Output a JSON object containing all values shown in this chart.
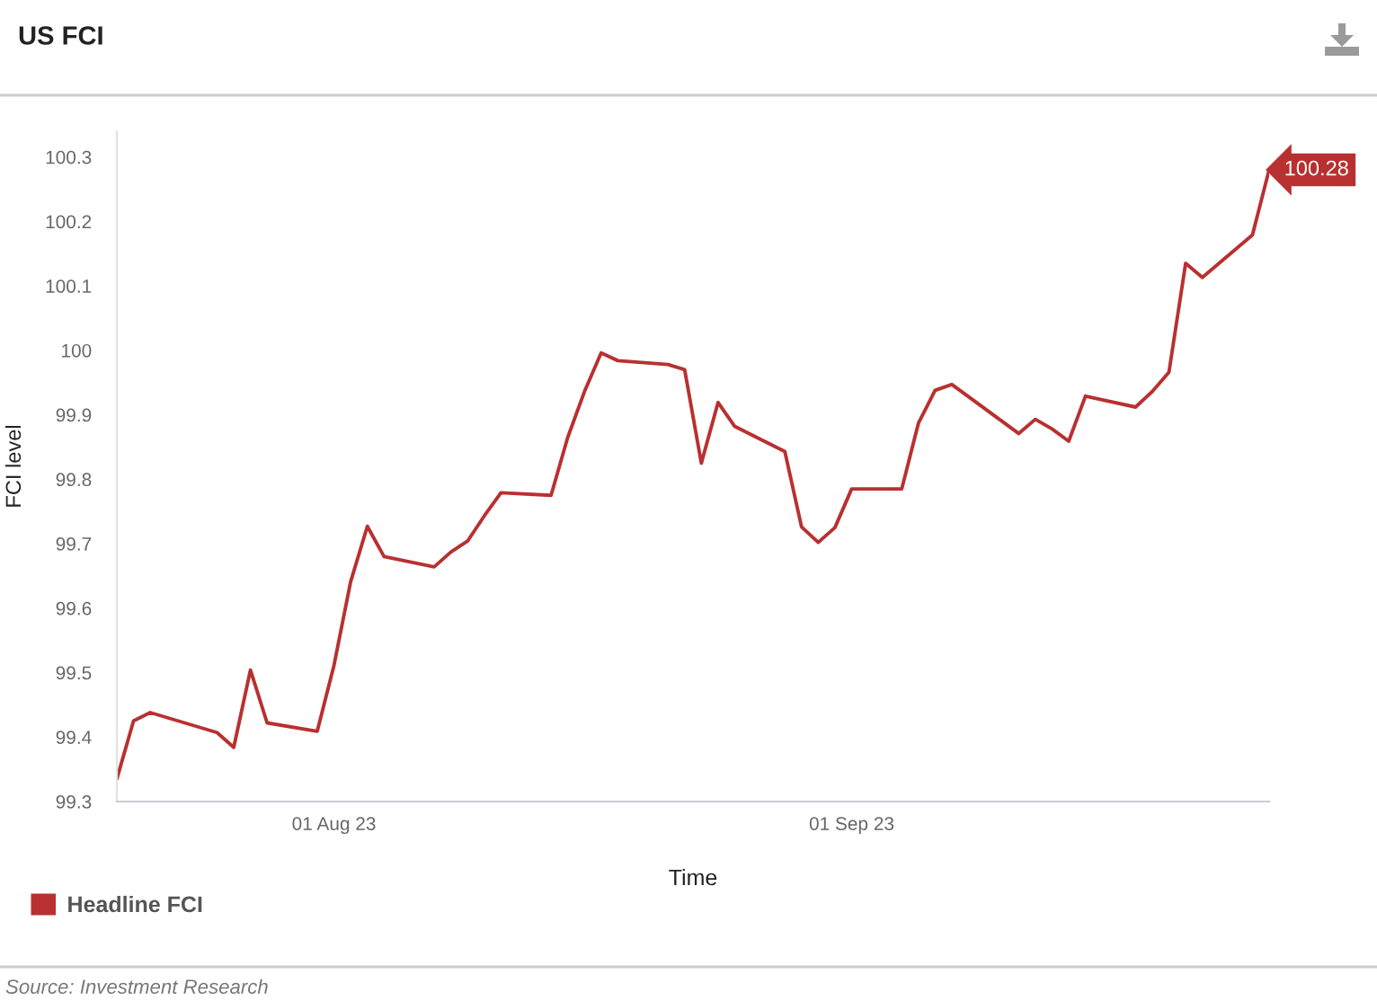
{
  "chart_data": {
    "type": "line",
    "title": "US FCI",
    "xlabel": "Time",
    "ylabel": "FCI level",
    "annotations": [
      "Source: Investment Research"
    ],
    "x": [
      "2023-07-19",
      "2023-07-20",
      "2023-07-21",
      "2023-07-25",
      "2023-07-26",
      "2023-07-27",
      "2023-07-28",
      "2023-07-31",
      "2023-08-01",
      "2023-08-02",
      "2023-08-03",
      "2023-08-04",
      "2023-08-07",
      "2023-08-08",
      "2023-08-09",
      "2023-08-10",
      "2023-08-11",
      "2023-08-14",
      "2023-08-15",
      "2023-08-16",
      "2023-08-17",
      "2023-08-18",
      "2023-08-21",
      "2023-08-22",
      "2023-08-23",
      "2023-08-24",
      "2023-08-25",
      "2023-08-28",
      "2023-08-29",
      "2023-08-30",
      "2023-08-31",
      "2023-09-01",
      "2023-09-04",
      "2023-09-05",
      "2023-09-06",
      "2023-09-07",
      "2023-09-11",
      "2023-09-12",
      "2023-09-13",
      "2023-09-14",
      "2023-09-15",
      "2023-09-18",
      "2023-09-19",
      "2023-09-20",
      "2023-09-21",
      "2023-09-22",
      "2023-09-25",
      "2023-09-26"
    ],
    "series": [
      {
        "name": "Headline FCI",
        "color": "#b93030",
        "values": [
          99.335,
          99.425,
          99.438,
          99.407,
          99.384,
          99.504,
          99.422,
          99.409,
          99.511,
          99.641,
          99.727,
          99.68,
          99.664,
          99.687,
          99.704,
          99.743,
          99.779,
          99.775,
          99.865,
          99.936,
          99.996,
          99.984,
          99.978,
          99.97,
          99.825,
          99.919,
          99.882,
          99.843,
          99.726,
          99.702,
          99.725,
          99.785,
          99.785,
          99.887,
          99.938,
          99.947,
          99.871,
          99.893,
          99.878,
          99.859,
          99.929,
          99.912,
          99.936,
          99.966,
          100.135,
          100.113,
          100.179,
          100.28
        ],
        "value_labels": [
          null,
          null,
          null,
          null,
          null,
          null,
          null,
          null,
          null,
          null,
          null,
          null,
          null,
          null,
          null,
          null,
          null,
          null,
          null,
          null,
          null,
          null,
          null,
          null,
          null,
          null,
          null,
          null,
          null,
          null,
          null,
          null,
          null,
          null,
          null,
          null,
          null,
          null,
          null,
          null,
          null,
          null,
          null,
          null,
          null,
          null,
          null,
          "100.28"
        ]
      }
    ],
    "xlim": [
      "2023-07-19",
      "2023-09-26"
    ],
    "xticks": [
      {
        "value": "2023-08-01",
        "label": "01 Aug 23"
      },
      {
        "value": "2023-09-01",
        "label": "01 Sep 23"
      }
    ],
    "ylim": [
      99.3,
      100.34
    ],
    "yticks": [
      99.3,
      99.4,
      99.5,
      99.6,
      99.7,
      99.8,
      99.9,
      100,
      100.1,
      100.2,
      100.3
    ],
    "grid": false,
    "legend": "bottom left",
    "line_style": "solid"
  }
}
